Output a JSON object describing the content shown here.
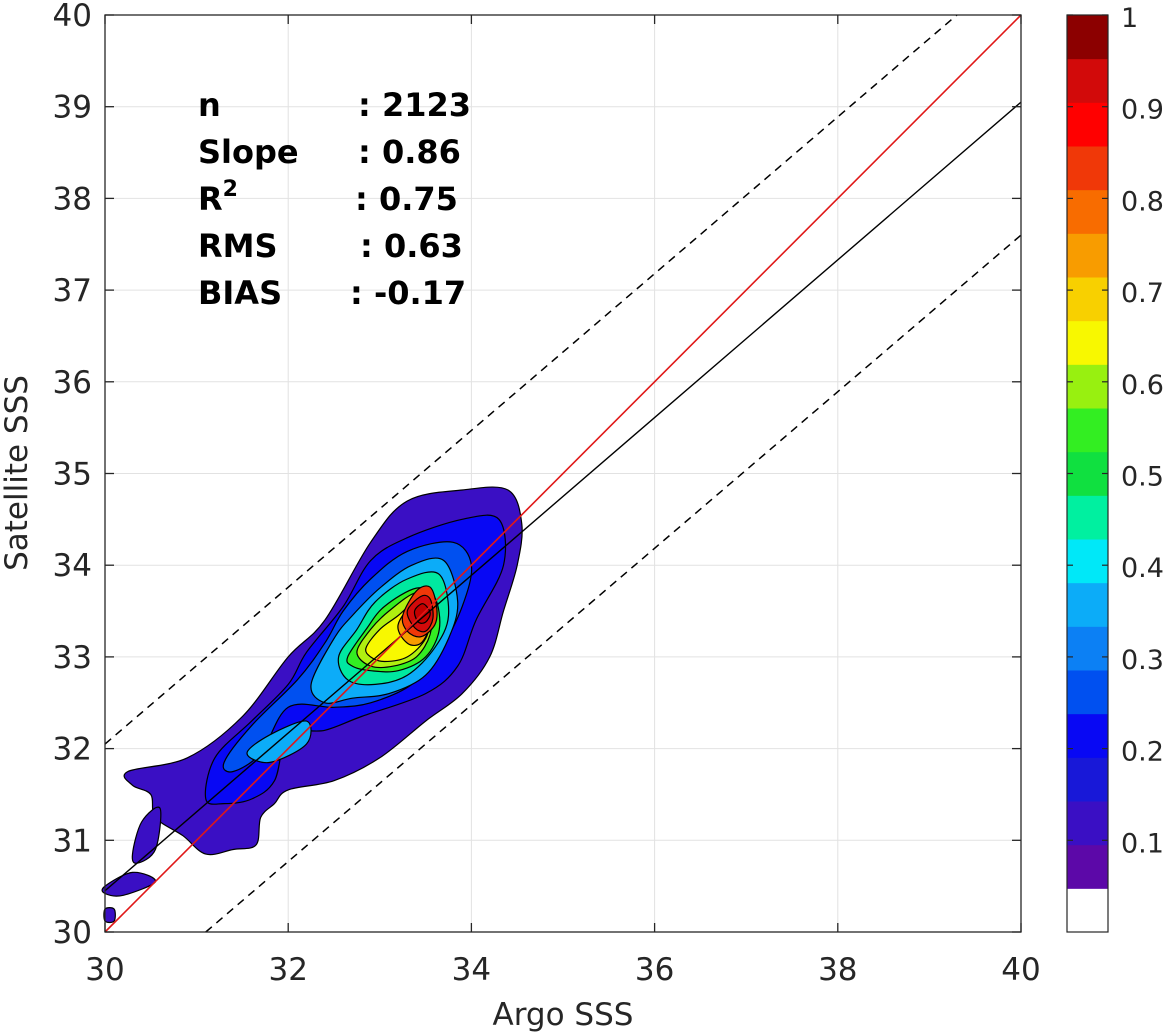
{
  "chart_data": {
    "type": "contour",
    "xlabel": "Argo SSS",
    "ylabel": "Satellite SSS",
    "xlim": [
      30,
      40
    ],
    "ylim": [
      30,
      40
    ],
    "xticks": [
      "30",
      "32",
      "34",
      "36",
      "38",
      "40"
    ],
    "yticks": [
      "30",
      "31",
      "32",
      "33",
      "34",
      "35",
      "36",
      "37",
      "38",
      "39",
      "40"
    ],
    "grid": true,
    "stats": [
      {
        "key": "n",
        "value": ": 2123"
      },
      {
        "key": "Slope",
        "value": ": 0.86"
      },
      {
        "key": "R",
        "sup": "2",
        "value": ": 0.75"
      },
      {
        "key": "RMS",
        "value": ": 0.63"
      },
      {
        "key": "BIAS",
        "value": ": -0.17"
      }
    ],
    "lines": {
      "one_to_one": {
        "color": "#e01818",
        "points": [
          [
            30,
            30
          ],
          [
            40,
            40
          ]
        ]
      },
      "fit": {
        "color": "#000000",
        "points": [
          [
            30,
            30.45
          ],
          [
            40,
            39.05
          ]
        ]
      },
      "upper_dashed": {
        "color": "#000000",
        "points": [
          [
            30,
            32.05
          ],
          [
            39.3,
            40
          ]
        ]
      },
      "lower_dashed": {
        "color": "#000000",
        "points": [
          [
            31.1,
            30
          ],
          [
            40,
            37.6
          ]
        ]
      }
    },
    "contour_levels": [
      0.05,
      0.1,
      0.15,
      0.2,
      0.25,
      0.3,
      0.35,
      0.4,
      0.45,
      0.5,
      0.55,
      0.6,
      0.65,
      0.7,
      0.75,
      0.8,
      0.85,
      0.9,
      0.95
    ],
    "contour_fills": [
      {
        "level": 0.05,
        "color": "#3a0fc4",
        "points": [
          [
            30.9,
            31.9
          ],
          [
            31.5,
            32.35
          ],
          [
            32.0,
            33.0
          ],
          [
            32.4,
            33.4
          ],
          [
            32.9,
            34.25
          ],
          [
            33.3,
            34.7
          ],
          [
            33.9,
            34.82
          ],
          [
            34.4,
            34.82
          ],
          [
            34.55,
            34.45
          ],
          [
            34.5,
            34.0
          ],
          [
            34.35,
            33.5
          ],
          [
            34.2,
            33.0
          ],
          [
            33.9,
            32.6
          ],
          [
            33.5,
            32.3
          ],
          [
            33.0,
            31.9
          ],
          [
            32.5,
            31.65
          ],
          [
            32.0,
            31.55
          ],
          [
            31.85,
            31.4
          ],
          [
            31.7,
            31.25
          ],
          [
            31.65,
            30.95
          ],
          [
            31.4,
            30.9
          ],
          [
            31.1,
            30.85
          ],
          [
            30.85,
            31.05
          ],
          [
            30.55,
            31.25
          ],
          [
            30.5,
            31.5
          ],
          [
            30.3,
            31.6
          ],
          [
            30.25,
            31.75
          ]
        ]
      },
      {
        "level": 0.1,
        "color": "#3a0fc4",
        "points": [
          [
            30.3,
            30.85
          ],
          [
            30.4,
            31.2
          ],
          [
            30.6,
            31.35
          ],
          [
            30.55,
            30.9
          ],
          [
            30.35,
            30.75
          ]
        ]
      },
      {
        "level": 0.1,
        "color": "#3a0fc4",
        "points": [
          [
            30.0,
            30.5
          ],
          [
            30.3,
            30.65
          ],
          [
            30.55,
            30.55
          ],
          [
            30.2,
            30.4
          ],
          [
            30.0,
            30.42
          ]
        ]
      },
      {
        "level": 0.1,
        "color": "#3a0fc4",
        "points": [
          [
            30.0,
            30.25
          ],
          [
            30.1,
            30.25
          ],
          [
            30.1,
            30.12
          ],
          [
            30.0,
            30.12
          ]
        ]
      },
      {
        "level": 0.1,
        "color": "#0808f4",
        "points": [
          [
            31.1,
            31.45
          ],
          [
            31.2,
            31.9
          ],
          [
            31.6,
            32.3
          ],
          [
            32.0,
            32.7
          ],
          [
            32.2,
            33.05
          ],
          [
            32.6,
            33.55
          ],
          [
            32.9,
            34.05
          ],
          [
            33.3,
            34.3
          ],
          [
            33.9,
            34.5
          ],
          [
            34.3,
            34.5
          ],
          [
            34.35,
            34.0
          ],
          [
            34.05,
            33.4
          ],
          [
            33.85,
            32.9
          ],
          [
            33.5,
            32.6
          ],
          [
            32.8,
            32.35
          ],
          [
            32.4,
            32.2
          ],
          [
            32.0,
            32.15
          ],
          [
            31.85,
            31.65
          ],
          [
            31.6,
            31.45
          ],
          [
            31.3,
            31.4
          ]
        ]
      },
      {
        "level": 0.15,
        "color": "#0050f0",
        "points": [
          [
            31.3,
            31.85
          ],
          [
            31.6,
            32.25
          ],
          [
            32.1,
            32.75
          ],
          [
            32.4,
            33.15
          ],
          [
            32.6,
            33.5
          ],
          [
            32.9,
            33.85
          ],
          [
            33.3,
            34.15
          ],
          [
            33.8,
            34.25
          ],
          [
            34.0,
            34.0
          ],
          [
            33.9,
            33.55
          ],
          [
            33.65,
            33.05
          ],
          [
            33.35,
            32.7
          ],
          [
            32.9,
            32.5
          ],
          [
            32.5,
            32.45
          ],
          [
            32.0,
            32.45
          ],
          [
            31.7,
            31.95
          ],
          [
            31.4,
            31.75
          ]
        ]
      },
      {
        "level": 0.2,
        "color": "#0cacf8",
        "points": [
          [
            31.55,
            31.95
          ],
          [
            31.8,
            32.15
          ],
          [
            32.2,
            32.3
          ],
          [
            32.2,
            32.05
          ],
          [
            31.8,
            31.85
          ]
        ]
      },
      {
        "level": 0.2,
        "color": "#0cacf8",
        "points": [
          [
            32.25,
            32.7
          ],
          [
            32.5,
            33.2
          ],
          [
            32.7,
            33.45
          ],
          [
            33.0,
            33.75
          ],
          [
            33.35,
            34.0
          ],
          [
            33.7,
            34.05
          ],
          [
            33.85,
            33.6
          ],
          [
            33.75,
            33.2
          ],
          [
            33.5,
            32.8
          ],
          [
            33.1,
            32.6
          ],
          [
            32.7,
            32.55
          ],
          [
            32.4,
            32.5
          ]
        ]
      },
      {
        "level": 0.3,
        "color": "#00e8a0",
        "points": [
          [
            32.55,
            33.0
          ],
          [
            32.75,
            33.3
          ],
          [
            32.95,
            33.6
          ],
          [
            33.3,
            33.85
          ],
          [
            33.65,
            33.9
          ],
          [
            33.75,
            33.45
          ],
          [
            33.6,
            33.1
          ],
          [
            33.3,
            32.8
          ],
          [
            32.95,
            32.7
          ],
          [
            32.65,
            32.75
          ]
        ]
      },
      {
        "level": 0.4,
        "color": "#33ee22",
        "points": [
          [
            32.65,
            33.0
          ],
          [
            32.85,
            33.3
          ],
          [
            33.05,
            33.55
          ],
          [
            33.4,
            33.75
          ],
          [
            33.6,
            33.65
          ],
          [
            33.65,
            33.3
          ],
          [
            33.5,
            33.0
          ],
          [
            33.2,
            32.85
          ],
          [
            32.9,
            32.85
          ],
          [
            32.7,
            32.9
          ]
        ]
      },
      {
        "level": 0.5,
        "color": "#b0f010",
        "points": [
          [
            32.75,
            33.05
          ],
          [
            32.9,
            33.3
          ],
          [
            33.1,
            33.5
          ],
          [
            33.4,
            33.7
          ],
          [
            33.55,
            33.55
          ],
          [
            33.55,
            33.25
          ],
          [
            33.4,
            33.0
          ],
          [
            33.15,
            32.9
          ],
          [
            32.9,
            32.9
          ]
        ]
      },
      {
        "level": 0.6,
        "color": "#f8f800",
        "points": [
          [
            32.85,
            33.1
          ],
          [
            33.0,
            33.3
          ],
          [
            33.2,
            33.45
          ],
          [
            33.45,
            33.65
          ],
          [
            33.55,
            33.45
          ],
          [
            33.5,
            33.2
          ],
          [
            33.3,
            33.0
          ],
          [
            33.05,
            32.95
          ],
          [
            32.9,
            33.0
          ]
        ]
      },
      {
        "level": 0.7,
        "color": "#f89c00",
        "points": [
          [
            33.2,
            33.35
          ],
          [
            33.4,
            33.62
          ],
          [
            33.55,
            33.58
          ],
          [
            33.55,
            33.35
          ],
          [
            33.45,
            33.15
          ],
          [
            33.3,
            33.15
          ]
        ]
      },
      {
        "level": 0.8,
        "color": "#f03808",
        "points": [
          [
            33.25,
            33.45
          ],
          [
            33.4,
            33.72
          ],
          [
            33.55,
            33.76
          ],
          [
            33.62,
            33.55
          ],
          [
            33.6,
            33.35
          ],
          [
            33.45,
            33.22
          ],
          [
            33.3,
            33.28
          ]
        ]
      },
      {
        "level": 0.9,
        "color": "#d20a0a",
        "points": [
          [
            33.3,
            33.5
          ],
          [
            33.45,
            33.66
          ],
          [
            33.55,
            33.63
          ],
          [
            33.58,
            33.42
          ],
          [
            33.5,
            33.28
          ],
          [
            33.38,
            33.32
          ]
        ]
      },
      {
        "level": 0.95,
        "color": "#c20000",
        "points": [
          [
            33.38,
            33.5
          ],
          [
            33.47,
            33.58
          ],
          [
            33.55,
            33.48
          ],
          [
            33.5,
            33.38
          ],
          [
            33.42,
            33.38
          ]
        ]
      }
    ],
    "colorbar": {
      "ticks": [
        "0.1",
        "0.2",
        "0.3",
        "0.4",
        "0.5",
        "0.6",
        "0.7",
        "0.8",
        "0.9",
        "1"
      ],
      "range": [
        0,
        1
      ],
      "bands": [
        "#ffffff",
        "#5c08a8",
        "#3a0fc4",
        "#1818d8",
        "#0808f4",
        "#0050f0",
        "#0c80f4",
        "#0cacf8",
        "#00e8f8",
        "#00f0a0",
        "#10e040",
        "#33ee22",
        "#98f010",
        "#f8f800",
        "#f8d000",
        "#f89c00",
        "#f86c00",
        "#f03808",
        "#ff0000",
        "#d20a0a",
        "#8c0000"
      ]
    }
  }
}
